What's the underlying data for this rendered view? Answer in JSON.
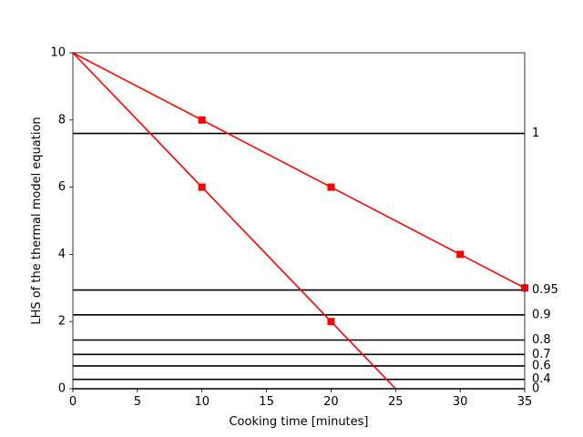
{
  "chart_data": {
    "type": "line",
    "xlabel": "Cooking time [minutes]",
    "ylabel": "LHS of the thermal model equation",
    "xlim": [
      0,
      35
    ],
    "ylim": [
      0,
      10
    ],
    "xticks": [
      "0",
      "5",
      "10",
      "15",
      "20",
      "25",
      "30",
      "35"
    ],
    "yticks": [
      "0",
      "2",
      "4",
      "6",
      "8",
      "10"
    ],
    "grid": false,
    "series": [
      {
        "x": [
          0,
          10,
          20,
          30,
          35
        ],
        "y": [
          10,
          8,
          6,
          4,
          3
        ],
        "color": "#ff0000",
        "marker": "square"
      },
      {
        "x": [
          0,
          10,
          20,
          25
        ],
        "y": [
          10,
          6,
          2,
          0
        ],
        "color": "#ff0000",
        "marker": "square"
      }
    ],
    "reference_lines": [
      {
        "label": "1",
        "y": 7.6
      },
      {
        "label": "0.95",
        "y": 2.94
      },
      {
        "label": "0.9",
        "y": 2.2
      },
      {
        "label": "0.8",
        "y": 1.45
      },
      {
        "label": "0.7",
        "y": 1.02
      },
      {
        "label": "0.6",
        "y": 0.68
      },
      {
        "label": "0.4",
        "y": 0.28
      },
      {
        "label": "0",
        "y": 0.0
      }
    ],
    "reference_line_color": "#000000"
  }
}
